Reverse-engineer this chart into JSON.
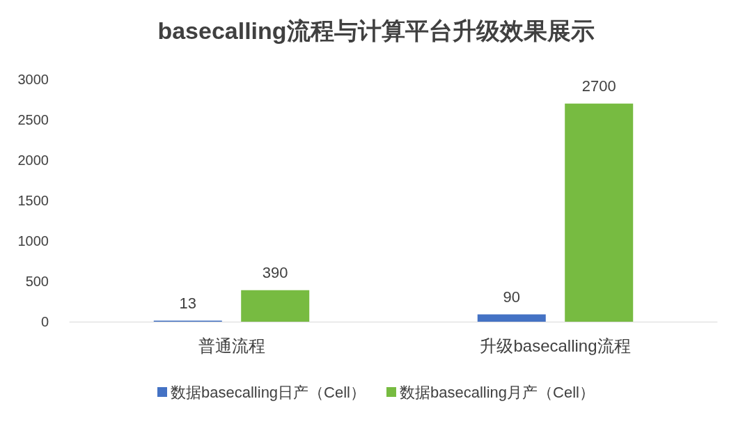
{
  "chart_data": {
    "type": "bar",
    "title": "basecalling流程与计算平台升级效果展示",
    "categories": [
      "普通流程",
      "升级basecalling流程"
    ],
    "series": [
      {
        "name": "数据basecalling日产（Cell）",
        "color": "#4472c4",
        "values": [
          13,
          90
        ]
      },
      {
        "name": "数据basecalling月产（Cell）",
        "color": "#77bb41",
        "values": [
          390,
          2700
        ]
      }
    ],
    "ylim": [
      0,
      3000
    ],
    "yticks": [
      0,
      500,
      1000,
      1500,
      2000,
      2500,
      3000
    ],
    "grid": false,
    "legend": "bottom",
    "data_labels": true
  }
}
